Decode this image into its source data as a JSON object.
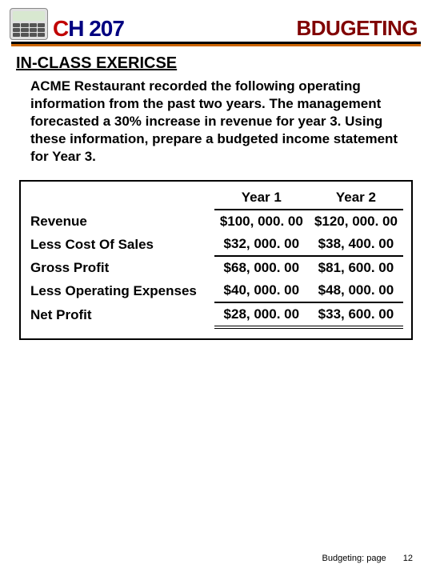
{
  "header": {
    "course_c": "C",
    "course_rest": "H 207",
    "topic": "BDUGETING"
  },
  "section_title": "IN-CLASS EXERICSE",
  "body_text": "ACME Restaurant recorded the following operating information from the past two years. The management forecasted a 30% increase in revenue for year 3.  Using these information, prepare a budgeted income statement for Year 3.",
  "table": {
    "col1": "Year 1",
    "col2": "Year 2",
    "rows": {
      "revenue": {
        "label": "Revenue",
        "y1": "$100, 000. 00",
        "y2": "$120, 000. 00"
      },
      "cost_sales": {
        "label": "Less Cost Of Sales",
        "y1": "$32, 000. 00",
        "y2": "$38, 400. 00"
      },
      "gross": {
        "label": "Gross Profit",
        "y1": "$68, 000. 00",
        "y2": "$81, 600. 00"
      },
      "opex": {
        "label": "Less Operating Expenses",
        "y1": "$40, 000. 00",
        "y2": "$48, 000. 00"
      },
      "net": {
        "label": "Net Profit",
        "y1": "$28, 000. 00",
        "y2": "$33, 600. 00"
      }
    }
  },
  "footer": {
    "label": "Budgeting: page",
    "num": "12"
  },
  "colors": {
    "brand_red": "#c00000",
    "brand_navy": "#000080",
    "brand_maroon": "#800000",
    "rule_orange": "#cc6600"
  }
}
